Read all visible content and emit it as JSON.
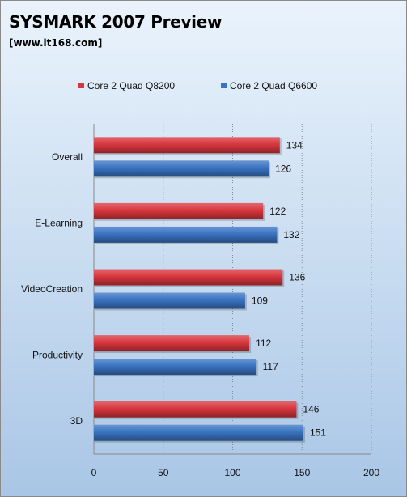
{
  "chart_data": {
    "type": "bar",
    "orientation": "horizontal",
    "title": "SYSMARK 2007 Preview",
    "subtitle": "[www.it168.com]",
    "categories": [
      "Overall",
      "E-Learning",
      "VideoCreation",
      "Productivity",
      "3D"
    ],
    "series": [
      {
        "name": "Core 2 Quad  Q8200",
        "color": "#d8363d",
        "values": [
          134,
          122,
          136,
          112,
          146
        ]
      },
      {
        "name": "Core 2 Quad  Q6600",
        "color": "#3a73c2",
        "values": [
          126,
          132,
          109,
          117,
          151
        ]
      }
    ],
    "xlim": [
      0,
      200
    ],
    "xticks": [
      0,
      50,
      100,
      150,
      200
    ],
    "grid": true,
    "legend_position": "top"
  }
}
